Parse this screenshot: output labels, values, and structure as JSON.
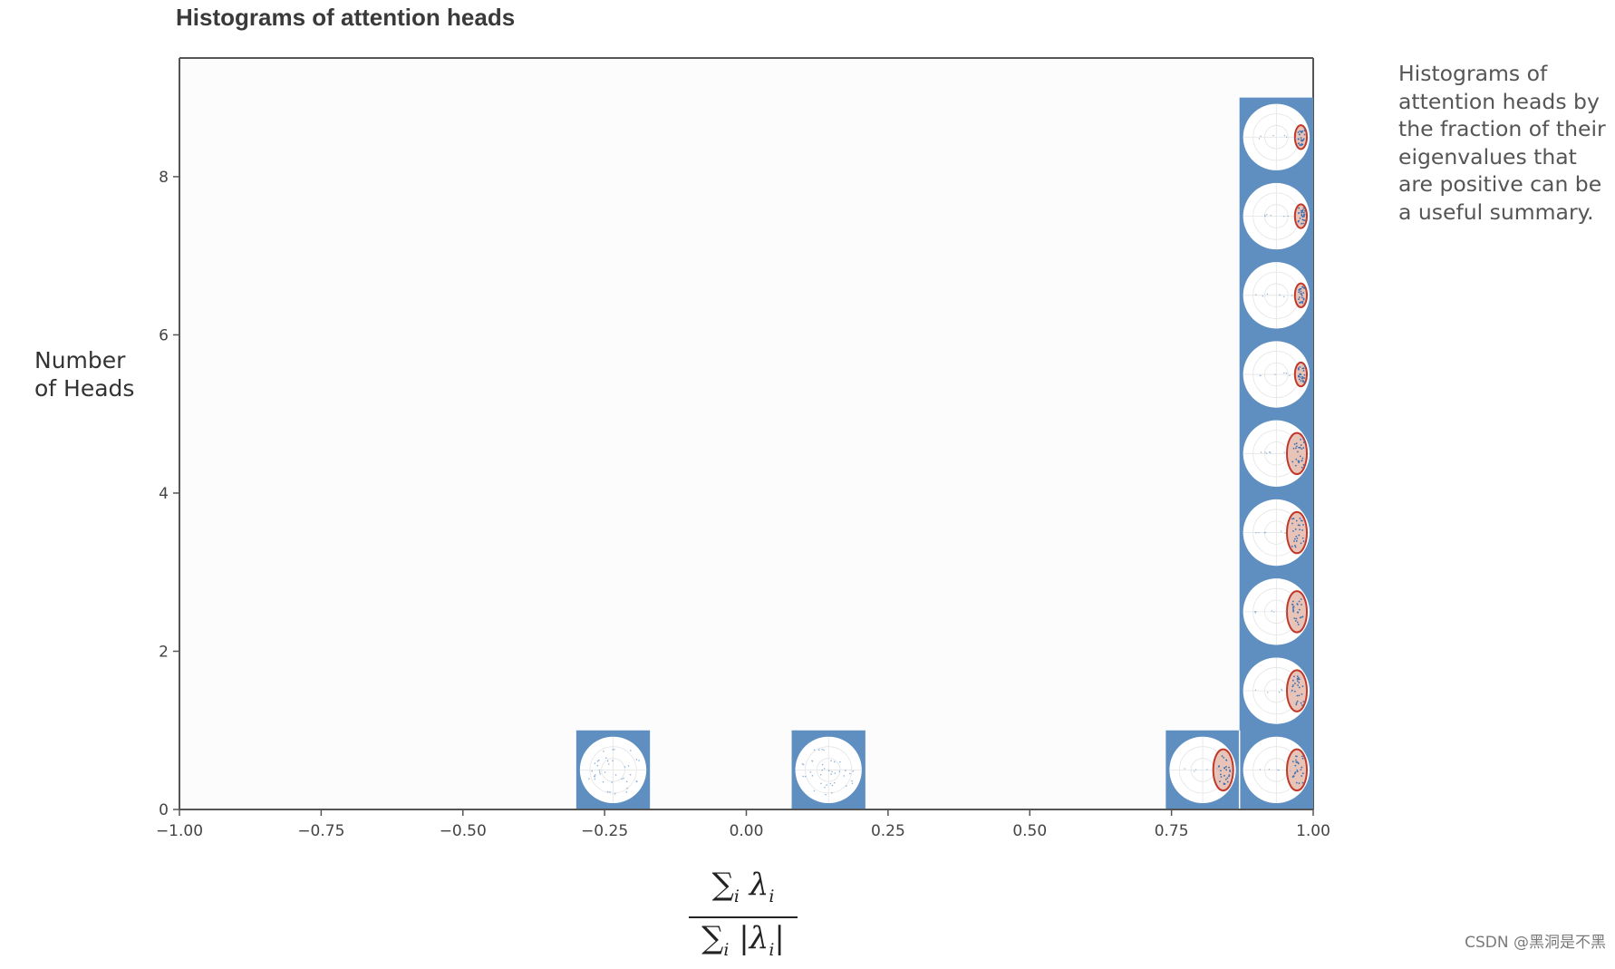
{
  "chart_data": {
    "type": "bar",
    "title": "Histograms of attention heads",
    "ylabel_lines": [
      "Number",
      "of Heads"
    ],
    "xlabel_formula": {
      "numerator": "∑",
      "numerator_sub": "i",
      "numerator_term": "λ",
      "numerator_term_sub": "i",
      "denominator": "∑",
      "denominator_sub": "i",
      "denominator_term": "|λ",
      "denominator_term_sub": "i",
      "denominator_close": "|"
    },
    "xlim": [
      -1.0,
      1.0
    ],
    "ylim": [
      0,
      9.5
    ],
    "x_ticks": [
      -1.0,
      -0.75,
      -0.5,
      -0.25,
      0.0,
      0.25,
      0.5,
      0.75,
      1.0
    ],
    "x_tick_labels": [
      "−1.00",
      "−0.75",
      "−0.50",
      "−0.25",
      "0.00",
      "0.25",
      "0.50",
      "0.75",
      "1.00"
    ],
    "y_ticks": [
      0,
      2,
      4,
      6,
      8
    ],
    "y_tick_labels": [
      "0",
      "2",
      "4",
      "6",
      "8"
    ],
    "bins": [
      {
        "x0": -0.3,
        "x1": -0.17,
        "count": 1
      },
      {
        "x0": 0.08,
        "x1": 0.21,
        "count": 1
      },
      {
        "x0": 0.74,
        "x1": 0.87,
        "count": 1
      },
      {
        "x0": 0.87,
        "x1": 1.0,
        "count": 9
      }
    ],
    "bar_color": "#5f8fc0",
    "plot_background": "#fcfcfc",
    "ellipse_color": "#c0392b",
    "ellipse_fill": "#e8c3b8",
    "grid": false
  },
  "caption_lines": [
    "Histograms of",
    "attention heads by",
    "the fraction of their",
    "eigenvalues that",
    "are positive can be",
    "a useful summary."
  ],
  "watermark": "CSDN @黑洞是不黑"
}
